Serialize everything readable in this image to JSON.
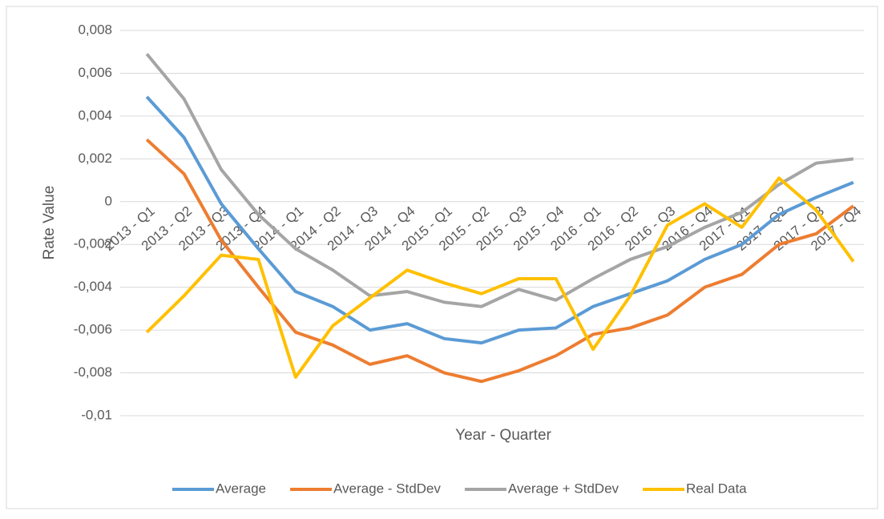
{
  "chart_data": {
    "type": "line",
    "x_label": "Rate Value",
    "xaxis_title": "Year - Quarter",
    "categories": [
      "2013 - Q1",
      "2013 - Q2",
      "2013 - Q3",
      "2013 - Q4",
      "2014 - Q1",
      "2014 - Q2",
      "2014 - Q3",
      "2014 - Q4",
      "2015 - Q1",
      "2015 - Q2",
      "2015 - Q3",
      "2015 - Q4",
      "2016 - Q1",
      "2016 - Q2",
      "2016 - Q3",
      "2016 - Q4",
      "2017 - Q1",
      "2017 - Q2",
      "2017 - Q3",
      "2017 - Q4"
    ],
    "series": [
      {
        "name": "Average",
        "color": "#5b9bd5",
        "values": [
          0.0049,
          0.003,
          -0.0001,
          -0.0022,
          -0.0042,
          -0.0049,
          -0.006,
          -0.0057,
          -0.0064,
          -0.0066,
          -0.006,
          -0.0059,
          -0.0049,
          -0.0043,
          -0.0037,
          -0.0027,
          -0.002,
          -0.0006,
          0.0002,
          0.0009
        ]
      },
      {
        "name": "Average - StdDev",
        "color": "#ed7d31",
        "values": [
          0.0029,
          0.0013,
          -0.0018,
          -0.004,
          -0.0061,
          -0.0067,
          -0.0076,
          -0.0072,
          -0.008,
          -0.0084,
          -0.0079,
          -0.0072,
          -0.0062,
          -0.0059,
          -0.0053,
          -0.004,
          -0.0034,
          -0.002,
          -0.0015,
          -0.0002
        ]
      },
      {
        "name": "Average + StdDev",
        "color": "#a5a5a5",
        "values": [
          0.0069,
          0.0048,
          0.0015,
          -0.0006,
          -0.0022,
          -0.0032,
          -0.0044,
          -0.0042,
          -0.0047,
          -0.0049,
          -0.0041,
          -0.0046,
          -0.0036,
          -0.0027,
          -0.0021,
          -0.0012,
          -0.0005,
          0.0008,
          0.0018,
          0.002
        ]
      },
      {
        "name": "Real Data",
        "color": "#ffc000",
        "values": [
          -0.0061,
          -0.0044,
          -0.0025,
          -0.0027,
          -0.0082,
          -0.0058,
          -0.0045,
          -0.0032,
          -0.0038,
          -0.0043,
          -0.0036,
          -0.0036,
          -0.0069,
          -0.0044,
          -0.0011,
          -0.0001,
          -0.0012,
          0.0011,
          -0.0004,
          -0.0028
        ]
      }
    ],
    "ylim": [
      -0.01,
      0.008
    ],
    "yticks": [
      {
        "value": -0.01,
        "label": "-0,01"
      },
      {
        "value": -0.008,
        "label": "-0,008"
      },
      {
        "value": -0.006,
        "label": "-0,006"
      },
      {
        "value": -0.004,
        "label": "-0,004"
      },
      {
        "value": -0.002,
        "label": "-0,002"
      },
      0,
      {
        "value": 0.002,
        "label": "0,002"
      },
      {
        "value": 0.004,
        "label": "0,004"
      },
      {
        "value": 0.006,
        "label": "0,006"
      },
      {
        "value": 0.008,
        "label": "0,008"
      }
    ],
    "grid": true,
    "legend": "bottom"
  }
}
